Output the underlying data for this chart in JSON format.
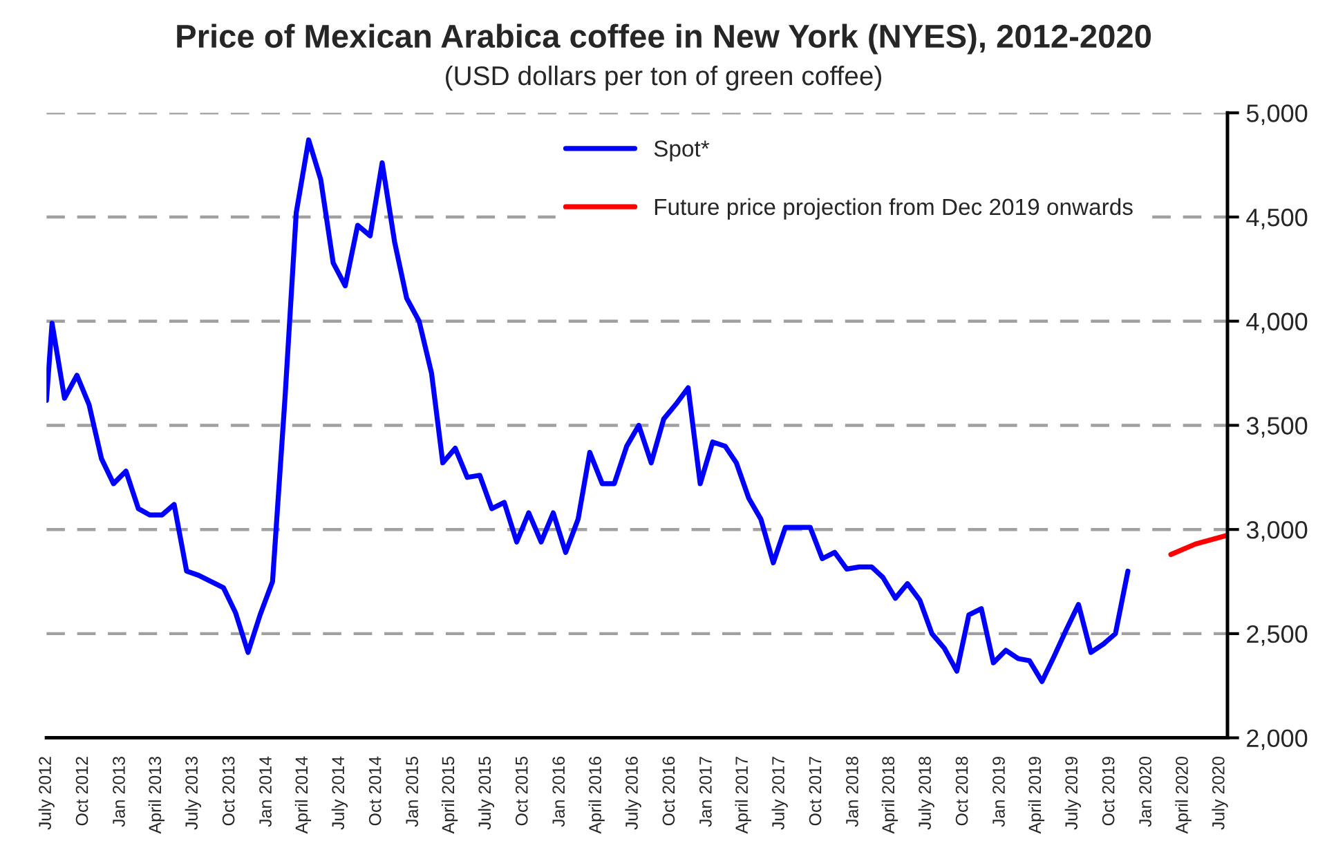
{
  "chart_data": {
    "type": "line",
    "title": "Price of Mexican Arabica coffee in New York (NYES), 2012-2020",
    "subtitle": "(USD dollars per ton of green coffee)",
    "series": [
      {
        "name": "Spot*",
        "color": "#0000ff",
        "x": [
          "2012-07-01",
          "2012-07-15",
          "2012-08-15",
          "2012-09-15",
          "2012-10-15",
          "2012-11-15",
          "2012-12-15",
          "2013-01-15",
          "2013-02-15",
          "2013-03-15",
          "2013-04-15",
          "2013-05-15",
          "2013-06-15",
          "2013-07-15",
          "2013-08-15",
          "2013-09-15",
          "2013-10-15",
          "2013-11-15",
          "2013-12-15",
          "2014-01-15",
          "2014-02-15",
          "2014-03-15",
          "2014-04-15",
          "2014-05-15",
          "2014-06-15",
          "2014-07-15",
          "2014-08-15",
          "2014-09-15",
          "2014-10-15",
          "2014-11-15",
          "2014-12-15",
          "2015-01-15",
          "2015-02-15",
          "2015-03-15",
          "2015-04-15",
          "2015-05-15",
          "2015-06-15",
          "2015-07-15",
          "2015-08-15",
          "2015-09-15",
          "2015-10-15",
          "2015-11-15",
          "2015-12-15",
          "2016-01-15",
          "2016-02-15",
          "2016-03-15",
          "2016-04-15",
          "2016-05-15",
          "2016-06-15",
          "2016-07-15",
          "2016-08-15",
          "2016-09-15",
          "2016-10-15",
          "2016-11-15",
          "2016-12-15",
          "2017-01-15",
          "2017-02-15",
          "2017-03-15",
          "2017-04-15",
          "2017-05-15",
          "2017-06-15",
          "2017-07-15",
          "2017-08-15",
          "2017-09-15",
          "2017-10-15",
          "2017-11-15",
          "2017-12-15",
          "2018-01-15",
          "2018-02-15",
          "2018-03-15",
          "2018-04-15",
          "2018-05-15",
          "2018-06-15",
          "2018-07-15",
          "2018-08-15",
          "2018-09-15",
          "2018-10-15",
          "2018-11-15",
          "2018-12-15",
          "2019-01-15",
          "2019-02-15",
          "2019-03-15",
          "2019-04-15",
          "2019-05-15",
          "2019-06-15",
          "2019-07-15",
          "2019-08-15",
          "2019-09-15",
          "2019-10-15",
          "2019-11-15"
        ],
        "values": [
          3620,
          3990,
          3630,
          3740,
          3600,
          3340,
          3220,
          3280,
          3100,
          3070,
          3070,
          3120,
          2800,
          2780,
          2750,
          2720,
          2600,
          2410,
          2590,
          2750,
          3630,
          4520,
          4870,
          4680,
          4280,
          4170,
          4460,
          4410,
          4760,
          4380,
          4110,
          4000,
          3750,
          3320,
          3390,
          3250,
          3260,
          3100,
          3130,
          2940,
          3080,
          2940,
          3080,
          2890,
          3050,
          3370,
          3220,
          3220,
          3400,
          3500,
          3320,
          3530,
          3600,
          3680,
          3220,
          3420,
          3400,
          3320,
          3150,
          3050,
          2840,
          3010,
          3010,
          3010,
          2860,
          2890,
          2810,
          2820,
          2820,
          2770,
          2670,
          2740,
          2660,
          2500,
          2430,
          2320,
          2590,
          2620,
          2360,
          2420,
          2380,
          2370,
          2270,
          2390,
          2520,
          2640,
          2410,
          2450,
          2500,
          2800
        ]
      },
      {
        "name": "Future price projection from Dec 2019 onwards",
        "color": "#ff0000",
        "x": [
          "2020-03-01",
          "2020-05-01",
          "2020-07-15"
        ],
        "values": [
          2880,
          2930,
          2970
        ]
      }
    ],
    "xlim": [
      "2012-07-01",
      "2020-07-20"
    ],
    "xticks": [
      {
        "value": "2012-07-01",
        "label": "July 2012"
      },
      {
        "value": "2012-10-01",
        "label": "Oct 2012"
      },
      {
        "value": "2013-01-01",
        "label": "Jan 2013"
      },
      {
        "value": "2013-04-01",
        "label": "April 2013"
      },
      {
        "value": "2013-07-01",
        "label": "July 2013"
      },
      {
        "value": "2013-10-01",
        "label": "Oct 2013"
      },
      {
        "value": "2014-01-01",
        "label": "Jan 2014"
      },
      {
        "value": "2014-04-01",
        "label": "April 2014"
      },
      {
        "value": "2014-07-01",
        "label": "July 2014"
      },
      {
        "value": "2014-10-01",
        "label": "Oct 2014"
      },
      {
        "value": "2015-01-01",
        "label": "Jan 2015"
      },
      {
        "value": "2015-04-01",
        "label": "April 2015"
      },
      {
        "value": "2015-07-01",
        "label": "July 2015"
      },
      {
        "value": "2015-10-01",
        "label": "Oct 2015"
      },
      {
        "value": "2016-01-01",
        "label": "Jan 2016"
      },
      {
        "value": "2016-04-01",
        "label": "April 2016"
      },
      {
        "value": "2016-07-01",
        "label": "July 2016"
      },
      {
        "value": "2016-10-01",
        "label": "Oct 2016"
      },
      {
        "value": "2017-01-01",
        "label": "Jan 2017"
      },
      {
        "value": "2017-04-01",
        "label": "April 2017"
      },
      {
        "value": "2017-07-01",
        "label": "July 2017"
      },
      {
        "value": "2017-10-01",
        "label": "Oct 2017"
      },
      {
        "value": "2018-01-01",
        "label": "Jan 2018"
      },
      {
        "value": "2018-04-01",
        "label": "April 2018"
      },
      {
        "value": "2018-07-01",
        "label": "July 2018"
      },
      {
        "value": "2018-10-01",
        "label": "Oct 2018"
      },
      {
        "value": "2019-01-01",
        "label": "Jan 2019"
      },
      {
        "value": "2019-04-01",
        "label": "April 2019"
      },
      {
        "value": "2019-07-01",
        "label": "July 2019"
      },
      {
        "value": "2019-10-01",
        "label": "Oct 2019"
      },
      {
        "value": "2020-01-01",
        "label": "Jan 2020"
      },
      {
        "value": "2020-04-01",
        "label": "April 2020"
      },
      {
        "value": "2020-07-01",
        "label": "July 2020"
      }
    ],
    "ylim": [
      2000,
      5000
    ],
    "yticks": [
      {
        "value": 2000,
        "label": "2,000"
      },
      {
        "value": 2500,
        "label": "2,500"
      },
      {
        "value": 3000,
        "label": "3,000"
      },
      {
        "value": 3500,
        "label": "3,500"
      },
      {
        "value": 4000,
        "label": "4,000"
      },
      {
        "value": 4500,
        "label": "4,500"
      },
      {
        "value": 5000,
        "label": "5,000"
      }
    ],
    "grid": "y",
    "legend": "top",
    "marker": "none",
    "line_style": "solid"
  }
}
